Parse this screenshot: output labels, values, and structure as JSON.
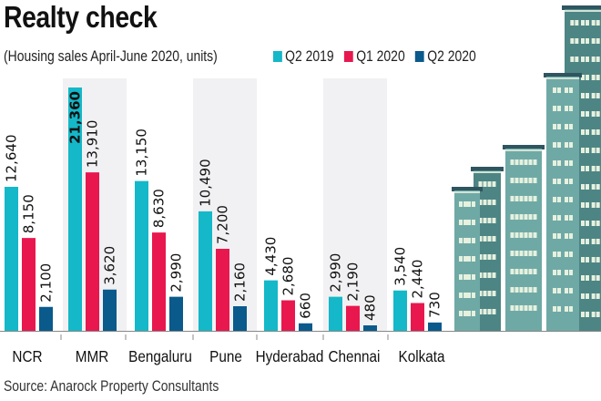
{
  "chart_data": {
    "type": "bar",
    "title": "Realty check",
    "subtitle": "(Housing sales April-June 2020, units)",
    "categories": [
      "NCR",
      "MMR",
      "Bengaluru",
      "Pune",
      "Hyderabad",
      "Chennai",
      "Kolkata"
    ],
    "series": [
      {
        "name": "Q2 2019",
        "color": "#14b8c8",
        "values": [
          12640,
          21360,
          13150,
          10490,
          4430,
          2990,
          3540
        ],
        "labels": [
          "12,640",
          "21,360",
          "13,150",
          "10,490",
          "4,430",
          "2,990",
          "3,540"
        ]
      },
      {
        "name": "Q1 2020",
        "color": "#e8184f",
        "values": [
          8150,
          13910,
          8630,
          7200,
          2680,
          2190,
          2440
        ],
        "labels": [
          "8,150",
          "13,910",
          "8,630",
          "7,200",
          "2,680",
          "2,190",
          "2,440"
        ]
      },
      {
        "name": "Q2 2020",
        "color": "#0a5a8c",
        "values": [
          2100,
          3620,
          2990,
          2160,
          660,
          480,
          730
        ],
        "labels": [
          "2,100",
          "3,620",
          "2,990",
          "2,160",
          "660",
          "480",
          "730"
        ]
      }
    ],
    "shaded_categories": [
      "MMR",
      "Pune",
      "Chennai"
    ],
    "highlight": {
      "category": "MMR",
      "series": "Q2 2019"
    },
    "xlabel": "",
    "ylabel": "",
    "ylim": [
      0,
      21360
    ],
    "grid": false,
    "legend_position": "top-right",
    "source": "Source: Anarock Property Consultants"
  },
  "colors": {
    "band": "#f1f1f3",
    "axis": "#888888",
    "building_light": "#6fa9a6",
    "building_dark": "#4d8584",
    "building_roof": "#2f5560",
    "window": "#e6f1df"
  }
}
